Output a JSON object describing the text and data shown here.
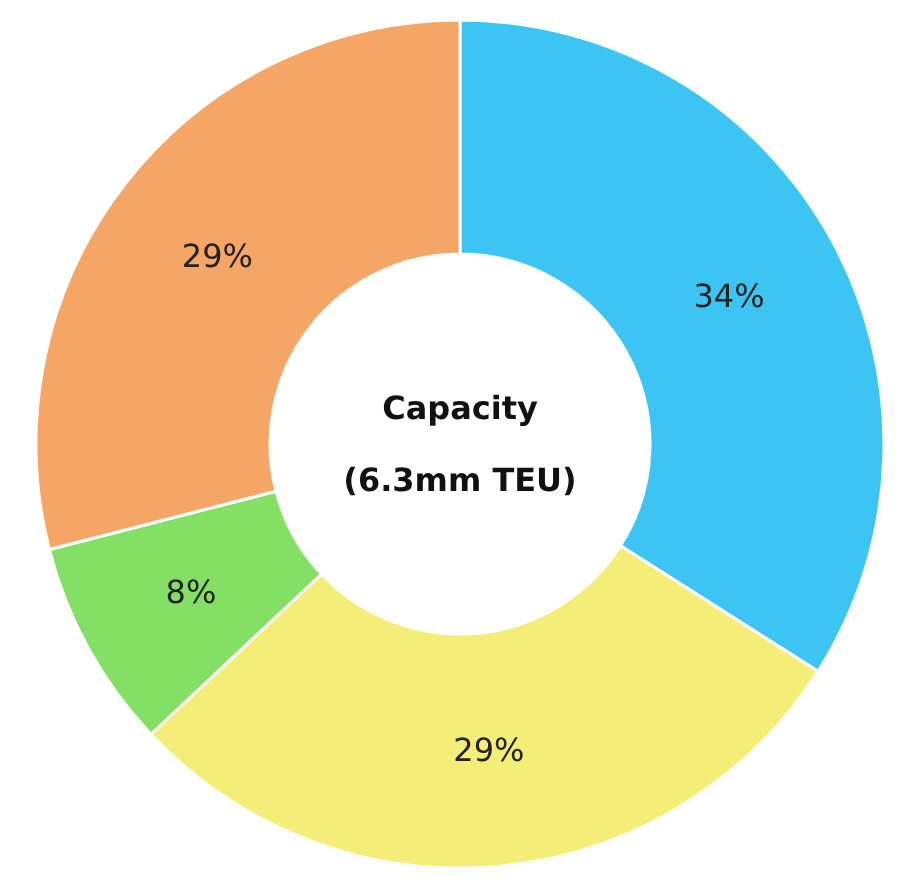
{
  "chart_data": {
    "type": "donut",
    "title": "Capacity",
    "subtitle": "(6.3mm TEU)",
    "categories": [
      null,
      null,
      null,
      null
    ],
    "values": [
      34,
      29,
      8,
      29
    ],
    "colors": [
      "#3cc4f2",
      "#f4ee78",
      "#84e064",
      "#f5a566"
    ],
    "value_labels": [
      "34%",
      "29%",
      "8%",
      "29%"
    ]
  }
}
